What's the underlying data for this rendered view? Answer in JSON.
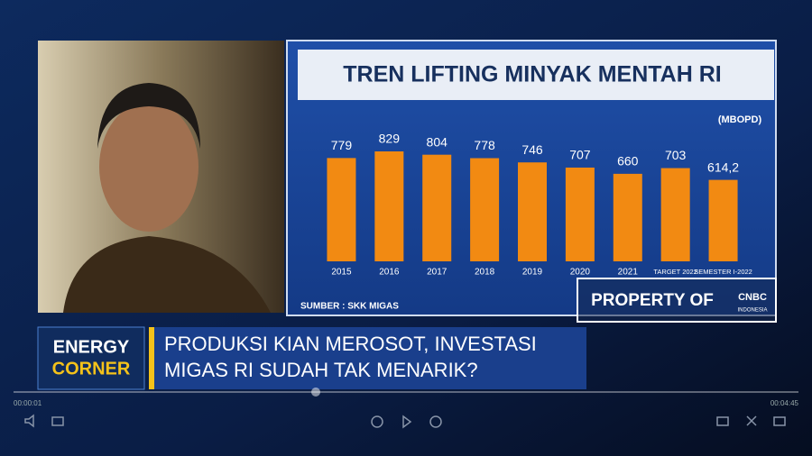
{
  "chart_data": {
    "type": "bar",
    "title": "TREN LIFTING MINYAK MENTAH RI",
    "unit_label": "(MBOPD)",
    "source": "SUMBER : SKK MIGAS",
    "categories": [
      "2015",
      "2016",
      "2017",
      "2018",
      "2019",
      "2020",
      "2021",
      "TARGET 2022",
      "SEMESTER I-2022"
    ],
    "values": [
      779,
      829,
      804,
      778,
      746,
      707,
      660,
      703,
      614.2
    ],
    "value_labels": [
      "779",
      "829",
      "804",
      "778",
      "746",
      "707",
      "660",
      "703",
      "614,2"
    ],
    "color": "#f28a12"
  },
  "watermark": {
    "text": "PROPERTY OF",
    "brand": "CNBC",
    "sub": "INDONESIA"
  },
  "segment": {
    "line1": "ENERGY",
    "line2": "CORNER"
  },
  "headline": {
    "line1": "PRODUKSI KIAN MEROSOT, INVESTASI",
    "line2": "MIGAS RI SUDAH TAK MENARIK?"
  },
  "player": {
    "current_time": "00:00:01",
    "duration": "00:04:45"
  }
}
